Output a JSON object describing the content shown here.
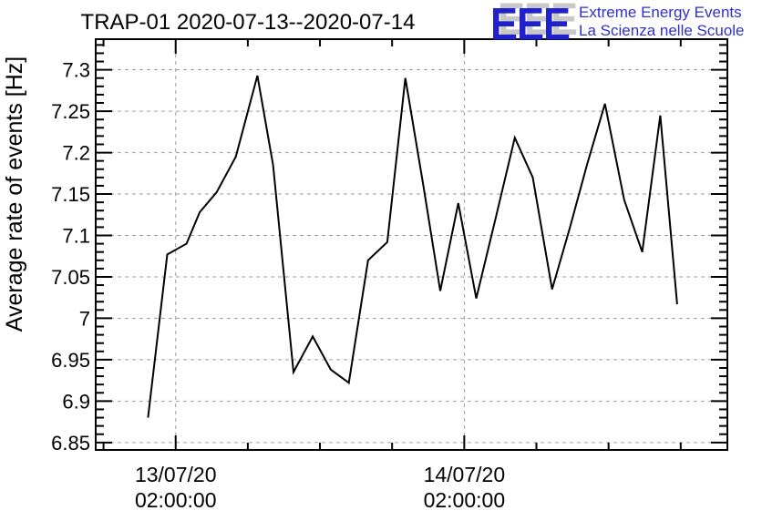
{
  "logo": {
    "text": "EEE",
    "line1": "Extreme Energy Events",
    "line2": "La Scienza nelle Scuole",
    "blue": "#2020cc",
    "shadow_gray": "#c8c8c8"
  },
  "chart_data": {
    "type": "line",
    "title": "TRAP-01 2020-07-13--2020-07-14",
    "ylabel": "Average rate of events [Hz]",
    "xlabel": "",
    "x_unit": "hours since 13/07/20 00:00:00",
    "xlim": [
      -4.65,
      47.88
    ],
    "ylim": [
      6.841,
      7.337
    ],
    "grid": {
      "on_major": true,
      "color": "#9c9c9c",
      "style": "dashed"
    },
    "line_color": "#000000",
    "background": "#ffffff",
    "y_major_ticks": [
      {
        "value": 6.85,
        "label": "6.85"
      },
      {
        "value": 6.9,
        "label": "6.9"
      },
      {
        "value": 6.95,
        "label": "6.95"
      },
      {
        "value": 7.0,
        "label": "7"
      },
      {
        "value": 7.05,
        "label": "7.05"
      },
      {
        "value": 7.1,
        "label": "7.1"
      },
      {
        "value": 7.15,
        "label": "7.15"
      },
      {
        "value": 7.2,
        "label": "7.2"
      },
      {
        "value": 7.25,
        "label": "7.25"
      },
      {
        "value": 7.3,
        "label": "7.3"
      }
    ],
    "y_minor_step": 0.01,
    "x_major_ticks": [
      {
        "hours": 2,
        "date": "13/07/20",
        "time": "02:00:00"
      },
      {
        "hours": 26,
        "date": "14/07/20",
        "time": "02:00:00"
      }
    ],
    "x_minor_tick_hours": [
      -4,
      8,
      14,
      20,
      32,
      38,
      44
    ],
    "series": [
      {
        "name": "Average rate of events",
        "x_hours": [
          -0.3,
          1.3,
          2.9,
          4.0,
          5.4,
          7.0,
          8.8,
          10.1,
          11.8,
          13.4,
          14.9,
          16.4,
          18.0,
          19.6,
          21.1,
          22.6,
          24.0,
          25.5,
          27.0,
          28.6,
          30.2,
          31.7,
          33.3,
          34.8,
          36.2,
          37.7,
          39.3,
          40.8,
          42.3,
          43.7
        ],
        "y_hz": [
          6.88,
          7.077,
          7.09,
          7.128,
          7.152,
          7.195,
          7.293,
          7.185,
          6.935,
          6.978,
          6.938,
          6.922,
          7.07,
          7.092,
          7.29,
          7.16,
          7.033,
          7.139,
          7.024,
          7.12,
          7.218,
          7.17,
          7.035,
          7.11,
          7.185,
          7.259,
          7.143,
          7.08,
          7.245,
          7.017
        ]
      }
    ]
  }
}
